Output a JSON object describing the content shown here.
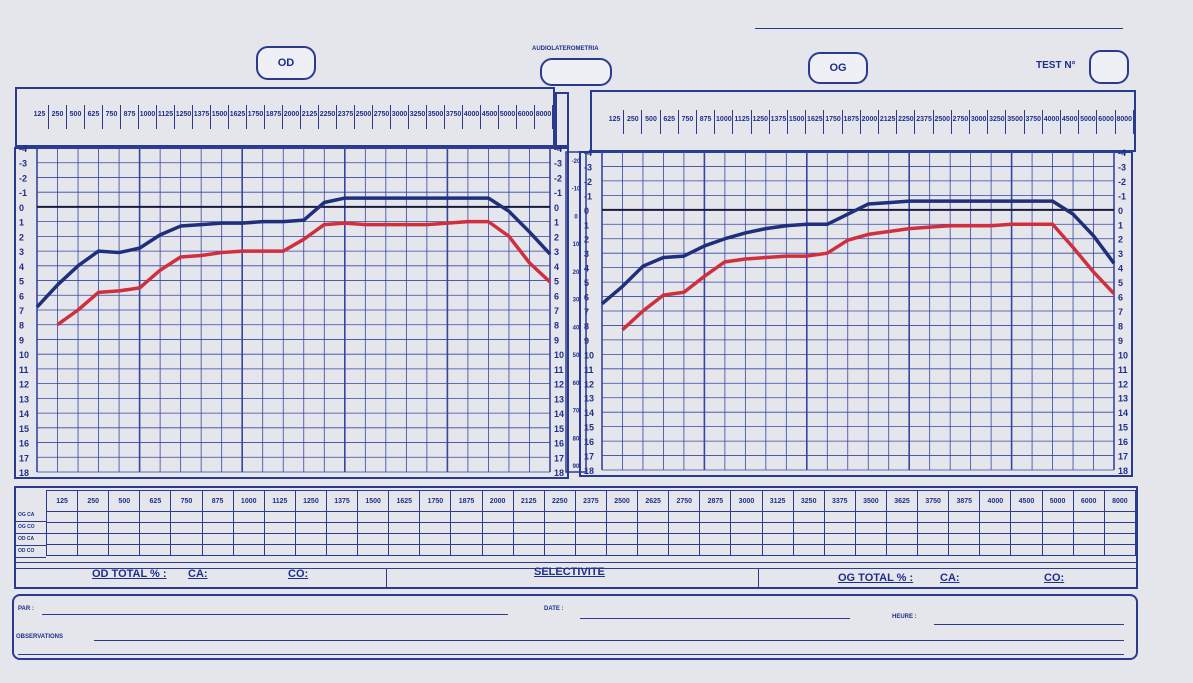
{
  "header": {
    "od_label": "OD",
    "og_label": "OG",
    "center_title": "AUDIOLATEROMETRIA",
    "test_label": "TEST N°"
  },
  "top_freqs": [
    "125",
    "250",
    "500",
    "625",
    "750",
    "875",
    "1000",
    "1125",
    "1250",
    "1375",
    "1500",
    "1625",
    "1750",
    "1875",
    "2000",
    "2125",
    "2250",
    "2375",
    "2500",
    "2750",
    "3000",
    "3250",
    "3500",
    "3750",
    "4000",
    "4500",
    "5000",
    "6000",
    "8000"
  ],
  "left_scale": [
    "-4",
    "-3",
    "-2",
    "-1",
    "0",
    "1",
    "2",
    "3",
    "4",
    "5",
    "6",
    "7",
    "8",
    "9",
    "10",
    "11",
    "12",
    "13",
    "14",
    "15",
    "16",
    "17",
    "18"
  ],
  "center_scale": [
    "-20",
    "-10",
    "0",
    "10",
    "20",
    "30",
    "40",
    "50",
    "60",
    "70",
    "80",
    "90"
  ],
  "table": {
    "freqs": [
      "125",
      "250",
      "500",
      "625",
      "750",
      "875",
      "1000",
      "1125",
      "1250",
      "1375",
      "1500",
      "1625",
      "1750",
      "1875",
      "2000",
      "2125",
      "2250",
      "2375",
      "2500",
      "2625",
      "2750",
      "2875",
      "3000",
      "3125",
      "3250",
      "3375",
      "3500",
      "3625",
      "3750",
      "3875",
      "4000",
      "4500",
      "5000",
      "6000",
      "8000"
    ],
    "rows": [
      "OG CA",
      "OG CO",
      "OD CA",
      "OD CO"
    ],
    "od_total": "OD TOTAL % :",
    "ca": "CA:",
    "co": "CO:",
    "selectivite": "SELECTIVITE",
    "og_total": "OG TOTAL % :",
    "ca2": "CA:",
    "co2": "CO:"
  },
  "footer": {
    "par": "PAR :",
    "date": "DATE :",
    "heure": "HEURE :",
    "observations": "OBSERVATIONS"
  },
  "chart_data": [
    {
      "type": "line",
      "x_index": [
        0,
        1,
        2,
        3,
        4,
        5,
        6,
        7,
        8,
        9,
        10,
        11,
        12,
        13,
        14,
        15,
        16,
        17,
        18,
        19,
        20,
        21,
        22,
        23,
        24,
        25
      ],
      "y_range": [
        -4,
        18
      ],
      "series": [
        {
          "color": "#1f2f7c",
          "x": [
            0,
            1,
            2,
            3,
            4,
            5,
            6,
            7,
            8,
            9,
            10,
            11,
            12,
            13,
            14,
            15,
            16,
            17,
            18,
            19,
            20,
            21,
            22,
            23,
            24,
            25
          ],
          "y": [
            6.8,
            5.3,
            4.0,
            3.0,
            3.1,
            2.8,
            1.9,
            1.3,
            1.2,
            1.1,
            1.1,
            1.0,
            1.0,
            0.9,
            -0.3,
            -0.6,
            -0.6,
            -0.6,
            -0.6,
            -0.6,
            -0.6,
            -0.6,
            -0.6,
            0.3,
            1.7,
            3.2
          ]
        },
        {
          "color": "#d0303e",
          "x": [
            1,
            2,
            3,
            4,
            5,
            6,
            7,
            8,
            9,
            10,
            11,
            12,
            13,
            14,
            15,
            16,
            17,
            18,
            19,
            20,
            21,
            22,
            23,
            24,
            25
          ],
          "y": [
            8.0,
            7.0,
            5.8,
            5.7,
            5.5,
            4.3,
            3.4,
            3.3,
            3.1,
            3.0,
            3.0,
            3.0,
            2.2,
            1.2,
            1.1,
            1.2,
            1.2,
            1.2,
            1.2,
            1.1,
            1.0,
            1.0,
            2.0,
            3.8,
            5.1
          ]
        }
      ]
    },
    {
      "type": "line",
      "x_index": [
        0,
        1,
        2,
        3,
        4,
        5,
        6,
        7,
        8,
        9,
        10,
        11,
        12,
        13,
        14,
        15,
        16,
        17,
        18,
        19,
        20,
        21,
        22,
        23,
        24,
        25
      ],
      "y_range": [
        -4,
        18
      ],
      "series": [
        {
          "color": "#1f2f7c",
          "x": [
            0,
            1,
            2,
            3,
            4,
            5,
            6,
            7,
            8,
            9,
            10,
            11,
            12,
            13,
            14,
            15,
            16,
            17,
            18,
            19,
            20,
            21,
            22,
            23,
            24,
            25
          ],
          "y": [
            6.5,
            5.3,
            3.9,
            3.3,
            3.2,
            2.5,
            2.0,
            1.6,
            1.3,
            1.1,
            1.0,
            1.0,
            0.3,
            -0.4,
            -0.5,
            -0.6,
            -0.6,
            -0.6,
            -0.6,
            -0.6,
            -0.6,
            -0.6,
            -0.6,
            0.3,
            1.8,
            3.7
          ]
        },
        {
          "color": "#d0303e",
          "x": [
            1,
            2,
            3,
            4,
            5,
            6,
            7,
            8,
            9,
            10,
            11,
            12,
            13,
            14,
            15,
            16,
            17,
            18,
            19,
            20,
            21,
            22,
            23,
            24,
            25
          ],
          "y": [
            8.3,
            7.0,
            5.9,
            5.7,
            4.6,
            3.6,
            3.4,
            3.3,
            3.2,
            3.2,
            3.0,
            2.1,
            1.7,
            1.5,
            1.3,
            1.2,
            1.1,
            1.1,
            1.1,
            1.0,
            1.0,
            1.0,
            2.6,
            4.3,
            5.8
          ]
        }
      ]
    }
  ]
}
